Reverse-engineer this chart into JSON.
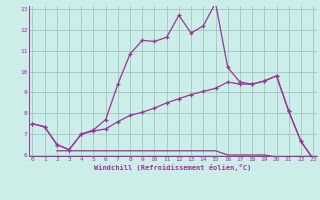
{
  "xlabel": "Windchill (Refroidissement éolien,°C)",
  "bg_color": "#cceee8",
  "line_color": "#993399",
  "grid_color": "#99bbbb",
  "xmin": 0,
  "xmax": 23,
  "ymin": 6,
  "ymax": 13,
  "line1_x": [
    0,
    1,
    2,
    3,
    4,
    5,
    6,
    7,
    8,
    9,
    10,
    11,
    12,
    13,
    14,
    15,
    16,
    17,
    18,
    19,
    20,
    21,
    22,
    23
  ],
  "line1_y": [
    7.5,
    7.35,
    6.5,
    6.25,
    7.0,
    7.15,
    7.25,
    7.6,
    7.9,
    8.05,
    8.25,
    8.5,
    8.7,
    8.9,
    9.05,
    9.2,
    9.5,
    9.4,
    9.4,
    9.55,
    9.8,
    8.1,
    6.65,
    5.82
  ],
  "line2_x": [
    0,
    1,
    2,
    3,
    4,
    5,
    6,
    7,
    8,
    9,
    10,
    11,
    12,
    13,
    14,
    15,
    16,
    17,
    18,
    19,
    20,
    21,
    22,
    23
  ],
  "line2_y": [
    7.5,
    7.35,
    6.5,
    6.25,
    7.0,
    7.2,
    7.7,
    9.4,
    10.85,
    11.5,
    11.45,
    11.65,
    12.7,
    11.85,
    12.2,
    13.3,
    10.2,
    9.5,
    9.4,
    9.55,
    9.8,
    8.1,
    6.65,
    5.82
  ],
  "line3_x": [
    2,
    3,
    4,
    5,
    6,
    7,
    8,
    9,
    10,
    11,
    12,
    13,
    14,
    15,
    16,
    17,
    18,
    19,
    20,
    21,
    22,
    23
  ],
  "line3_y": [
    6.2,
    6.2,
    6.2,
    6.2,
    6.2,
    6.2,
    6.2,
    6.2,
    6.2,
    6.2,
    6.2,
    6.2,
    6.2,
    6.2,
    6.0,
    6.0,
    6.0,
    6.0,
    5.9,
    5.85,
    5.82,
    5.82
  ]
}
